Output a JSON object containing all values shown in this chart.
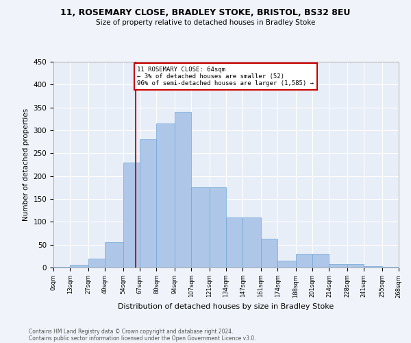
{
  "title1": "11, ROSEMARY CLOSE, BRADLEY STOKE, BRISTOL, BS32 8EU",
  "title2": "Size of property relative to detached houses in Bradley Stoke",
  "xlabel": "Distribution of detached houses by size in Bradley Stoke",
  "ylabel": "Number of detached properties",
  "footer1": "Contains HM Land Registry data © Crown copyright and database right 2024.",
  "footer2": "Contains public sector information licensed under the Open Government Licence v3.0.",
  "annotation_line1": "11 ROSEMARY CLOSE: 64sqm",
  "annotation_line2": "← 3% of detached houses are smaller (52)",
  "annotation_line3": "96% of semi-detached houses are larger (1,585) →",
  "property_size": 64,
  "bin_edges": [
    0,
    13,
    27,
    40,
    54,
    67,
    80,
    94,
    107,
    121,
    134,
    147,
    161,
    174,
    188,
    201,
    214,
    228,
    241,
    255,
    268
  ],
  "bar_heights": [
    2,
    6,
    20,
    55,
    230,
    280,
    315,
    340,
    175,
    175,
    110,
    110,
    63,
    15,
    30,
    30,
    8,
    8,
    3,
    2
  ],
  "bar_color": "#aec6e8",
  "bar_edge_color": "#6fa8d6",
  "vline_color": "#cc0000",
  "bg_color": "#e8eef7",
  "annotation_box_color": "#cc0000",
  "grid_color": "#ffffff",
  "fig_bg_color": "#f0f4fa",
  "ylim": [
    0,
    450
  ],
  "yticks": [
    0,
    50,
    100,
    150,
    200,
    250,
    300,
    350,
    400,
    450
  ]
}
